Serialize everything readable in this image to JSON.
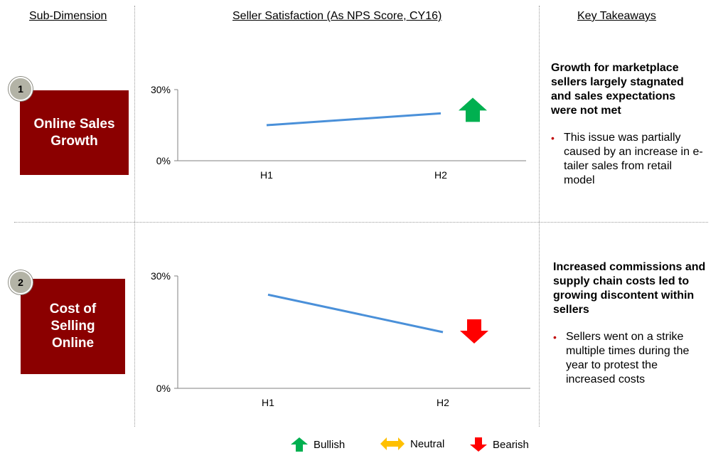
{
  "headers": {
    "sub_dimension": "Sub-Dimension",
    "seller_satisfaction": "Seller Satisfaction (As NPS Score, CY16)",
    "key_takeaways": "Key Takeaways"
  },
  "rows": [
    {
      "number": "1",
      "dimension_lines": [
        "Online Sales",
        "Growth"
      ],
      "trend": "bullish",
      "takeaway_lead": "Growth for marketplace sellers largely stagnated and sales expectations were not met",
      "takeaway_bullet": "This issue was partially caused by an increase in e-tailer sales from retail model"
    },
    {
      "number": "2",
      "dimension_lines": [
        "Cost of",
        "Selling",
        "Online"
      ],
      "trend": "bearish",
      "takeaway_lead": "Increased commissions and supply chain costs led to growing discontent within sellers",
      "takeaway_bullet": "Sellers went on a strike multiple times during the year to protest the increased costs"
    }
  ],
  "legend": {
    "bullish": "Bullish",
    "neutral": "Neutral",
    "bearish": "Bearish"
  },
  "colors": {
    "dimension_box": "#8b0000",
    "line": "#4a90d9",
    "bullish": "#00b050",
    "neutral": "#ffc000",
    "bearish": "#ff0000",
    "bullet": "#c00000"
  },
  "chart_data": [
    {
      "type": "line",
      "categories": [
        "H1",
        "H2"
      ],
      "series": [
        {
          "values": [
            15,
            20
          ]
        }
      ],
      "ylim": [
        0,
        30
      ],
      "y_ticks": [
        "0%",
        "30%"
      ],
      "grid": false
    },
    {
      "type": "line",
      "categories": [
        "H1",
        "H2"
      ],
      "series": [
        {
          "values": [
            25,
            15
          ]
        }
      ],
      "ylim": [
        0,
        30
      ],
      "y_ticks": [
        "0%",
        "30%"
      ],
      "grid": false
    }
  ]
}
